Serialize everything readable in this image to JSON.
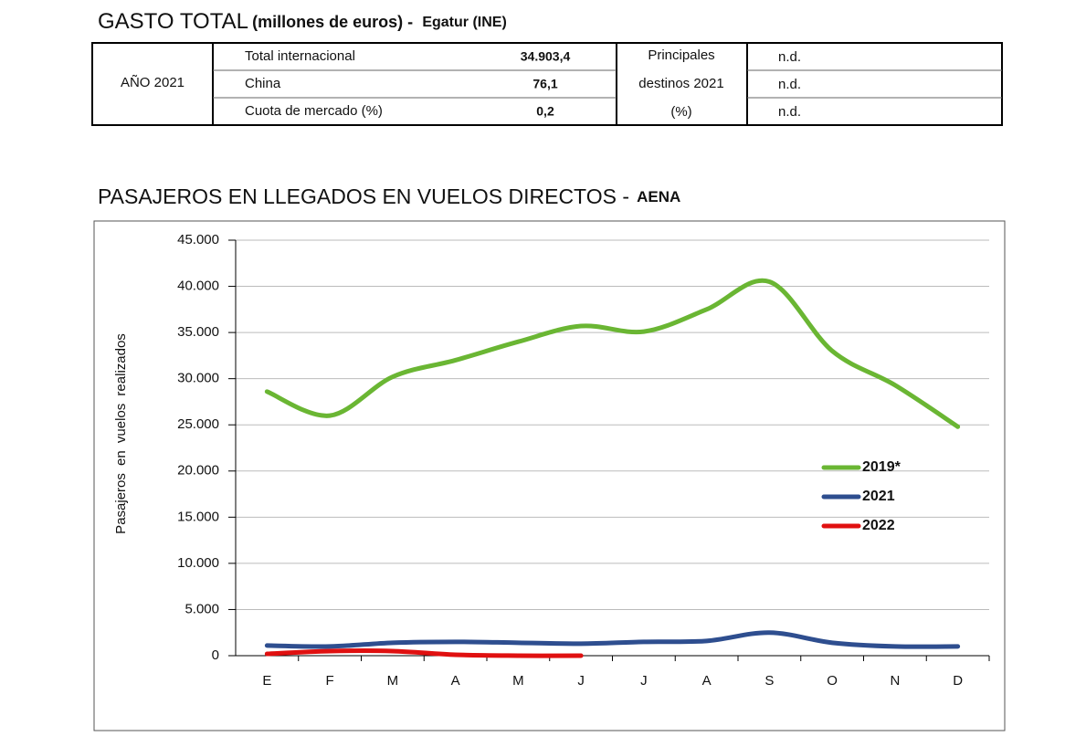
{
  "header": {
    "title": "GASTO TOTAL",
    "unit": "(millones de euros) -",
    "source": "Egatur (INE)"
  },
  "table": {
    "year": "AÑO 2021",
    "rows": [
      [
        "Total internacional",
        "34.903,4",
        "n.d."
      ],
      [
        "China",
        "76,1",
        "n.d."
      ],
      [
        "Cuota de mercado (%)",
        "0,2",
        "n.d."
      ]
    ],
    "side_label": [
      "Principales",
      "destinos 2021",
      "(%)"
    ]
  },
  "chart_data": {
    "type": "line",
    "title": "PASAJEROS EN LLEGADOS EN VUELOS DIRECTOS -",
    "source": "AENA",
    "y_label": "Pasajeros en vuelos realizados",
    "categories": [
      "E",
      "F",
      "M",
      "A",
      "M",
      "J",
      "J",
      "A",
      "S",
      "O",
      "N",
      "D"
    ],
    "series": [
      {
        "name": "2019*",
        "color": "#6ab633",
        "values": [
          28600,
          26000,
          30200,
          32000,
          34000,
          35700,
          35100,
          37500,
          40500,
          33000,
          29300,
          24800
        ]
      },
      {
        "name": "2021",
        "color": "#2e4e8f",
        "values": [
          1100,
          1000,
          1400,
          1500,
          1400,
          1300,
          1500,
          1600,
          2500,
          1400,
          1000,
          1000
        ]
      },
      {
        "name": "2022",
        "color": "#e01010",
        "values": [
          200,
          500,
          500,
          100,
          0,
          0,
          null,
          null,
          null,
          null,
          null,
          null
        ]
      }
    ],
    "ylim": [
      0,
      45000
    ],
    "yticks": [
      0,
      {
        "value": 5000,
        "label": "5.000"
      },
      {
        "value": 10000,
        "label": "10.000"
      },
      {
        "value": 15000,
        "label": "15.000"
      },
      {
        "value": 20000,
        "label": "20.000"
      },
      {
        "value": 25000,
        "label": "25.000"
      },
      {
        "value": 30000,
        "label": "30.000"
      },
      {
        "value": 35000,
        "label": "35.000"
      },
      {
        "value": 40000,
        "label": "40.000"
      },
      {
        "value": 45000,
        "label": "45.000"
      }
    ],
    "grid": true,
    "smooth": true
  }
}
